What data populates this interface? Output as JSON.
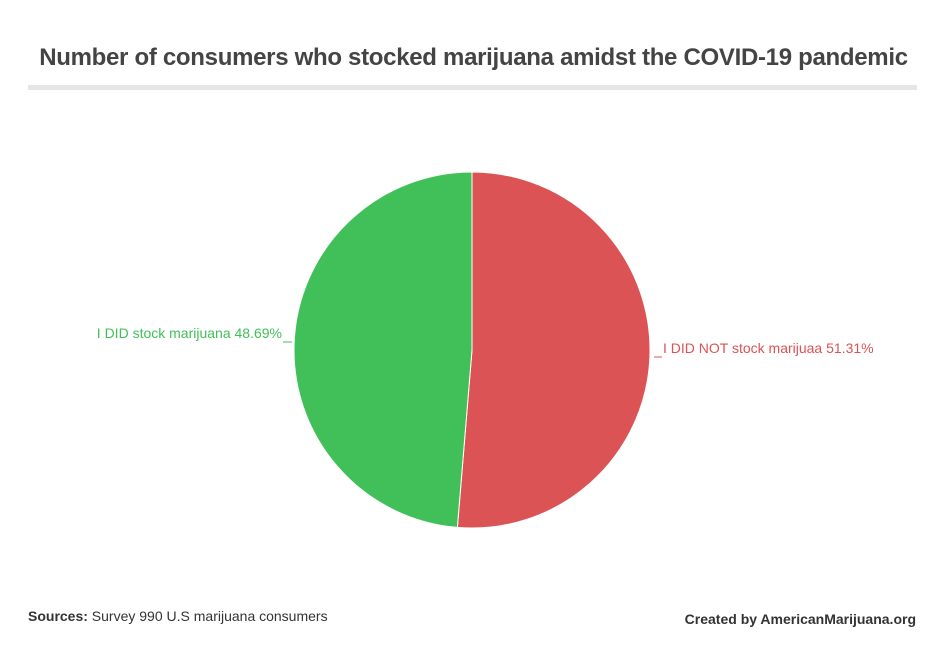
{
  "title": "Number of consumers who stocked marijuana amidst the COVID-19 pandemic",
  "chart_data": {
    "type": "pie",
    "title": "Number of consumers who stocked marijuana amidst the COVID-19 pandemic",
    "slices": [
      {
        "label": "I DID NOT stock marijuaa 51.31%",
        "value": 51.31,
        "color": "#dc5355"
      },
      {
        "label": "I DID stock marijuana 48.69%",
        "value": 48.69,
        "color": "#41bf58"
      }
    ],
    "start_angle": "top",
    "direction": "clockwise"
  },
  "footer": {
    "sources_label": "Sources:",
    "sources_text": " Survey 990 U.S marijuana consumers",
    "credit": "Created by AmericanMarijuana.org"
  }
}
